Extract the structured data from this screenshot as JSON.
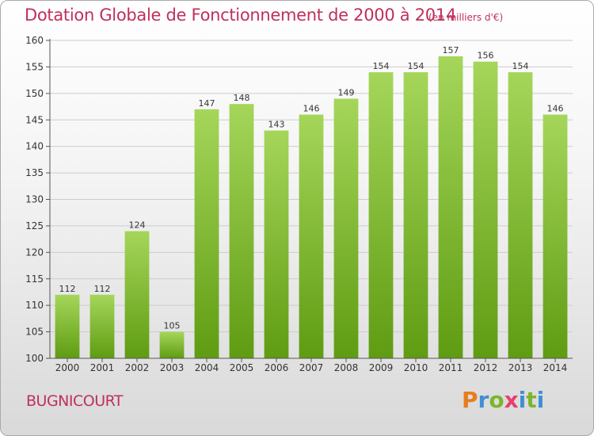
{
  "title": "Dotation Globale de Fonctionnement de 2000 à 2014",
  "subtitle": "(en milliers d'€)",
  "commune": "BUGNICOURT",
  "logo": {
    "letters": [
      "P",
      "r",
      "o",
      "x",
      "i",
      "t",
      "i"
    ],
    "colors": [
      "#e87d1e",
      "#3f8fd1",
      "#7cb52c",
      "#e83f6f",
      "#3f8fd1",
      "#7cb52c",
      "#3f8fd1"
    ]
  },
  "colors": {
    "bar_light": "#a5d65a",
    "bar_dark": "#5f9c12",
    "grid": "#cccccc",
    "title": "#c0305a"
  },
  "chart_data": {
    "type": "bar",
    "categories": [
      "2000",
      "2001",
      "2002",
      "2003",
      "2004",
      "2005",
      "2006",
      "2007",
      "2008",
      "2009",
      "2010",
      "2011",
      "2012",
      "2013",
      "2014"
    ],
    "values": [
      112,
      112,
      124,
      105,
      147,
      148,
      143,
      146,
      149,
      154,
      154,
      157,
      156,
      154,
      146
    ],
    "ylim": [
      100,
      160
    ],
    "yticks": [
      100,
      105,
      110,
      115,
      120,
      125,
      130,
      135,
      140,
      145,
      150,
      155,
      160
    ],
    "grid": true
  }
}
